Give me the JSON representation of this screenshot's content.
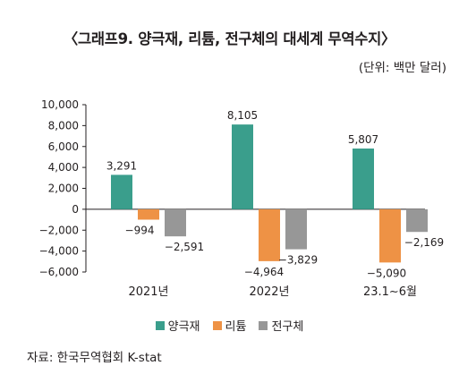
{
  "title": "〈그래프9. 양극재, 리튬, 전구체의 대세계 무역수지〉",
  "unit": "(단위: 백만 달러)",
  "source": "자료: 한국무역협회 K-stat",
  "colors": {
    "cathode": "#3a9e8c",
    "lithium": "#ee9245",
    "precursor": "#979797"
  },
  "chart_data": {
    "type": "bar",
    "title": "〈그래프9. 양극재, 리튬, 전구체의 대세계 무역수지〉",
    "categories": [
      "2021년",
      "2022년",
      "23.1∼6월"
    ],
    "series": [
      {
        "name": "양극재",
        "values": [
          3291,
          8105,
          5807
        ],
        "labels": [
          "3,291",
          "8,105",
          "5,807"
        ]
      },
      {
        "name": "리튬",
        "values": [
          -994,
          -4964,
          -5090
        ],
        "labels": [
          "−994",
          "−4,964",
          "−5,090"
        ]
      },
      {
        "name": "전구체",
        "values": [
          -2591,
          -3829,
          -2169
        ],
        "labels": [
          "−2,591",
          "−3,829",
          "−2,169"
        ]
      }
    ],
    "ylim": [
      -6000,
      10000
    ],
    "yticks": [
      10000,
      8000,
      6000,
      4000,
      2000,
      0,
      -2000,
      -4000,
      -6000
    ],
    "ytick_labels": [
      "10,000",
      "8,000",
      "6,000",
      "4,000",
      "2,000",
      "0",
      "−2,000",
      "−4,000",
      "−6,000"
    ],
    "grid": false,
    "legend": "bottom"
  }
}
